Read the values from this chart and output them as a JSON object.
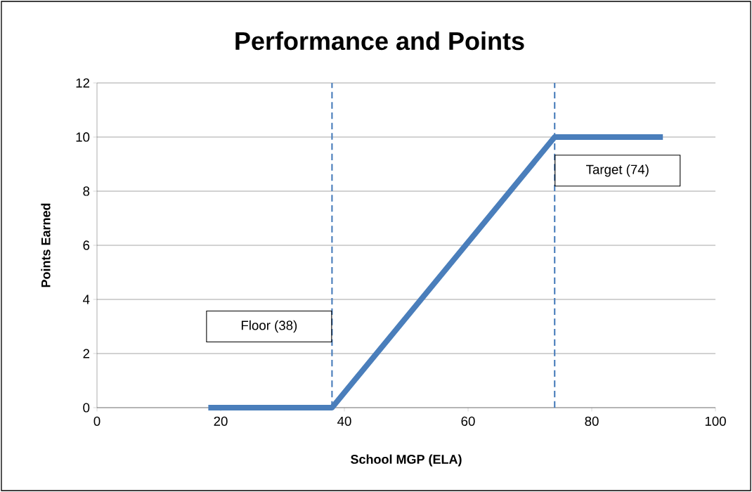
{
  "chart_data": {
    "type": "line",
    "title": "Performance and Points",
    "xlabel": "School MGP (ELA)",
    "ylabel": "Points Earned",
    "x": [
      18,
      38,
      74,
      91.5
    ],
    "series": [
      {
        "color": "#4a7ebb",
        "values": [
          0,
          0,
          10,
          10
        ]
      }
    ],
    "xlim": [
      0,
      100
    ],
    "xticks": [
      0,
      20,
      40,
      60,
      80,
      100
    ],
    "ylim": [
      0,
      12
    ],
    "yticks": [
      0,
      2,
      4,
      6,
      8,
      10,
      12
    ],
    "grid": "y",
    "marker": "none",
    "line_style": "solid",
    "ref_lines": [
      {
        "axis": "x",
        "value": 38,
        "label": "Floor (38)",
        "color": "#4a7ebb",
        "line_style": "dashed"
      },
      {
        "axis": "x",
        "value": 74,
        "label": "Target (74)",
        "color": "#4a7ebb",
        "line_style": "dashed"
      }
    ]
  }
}
